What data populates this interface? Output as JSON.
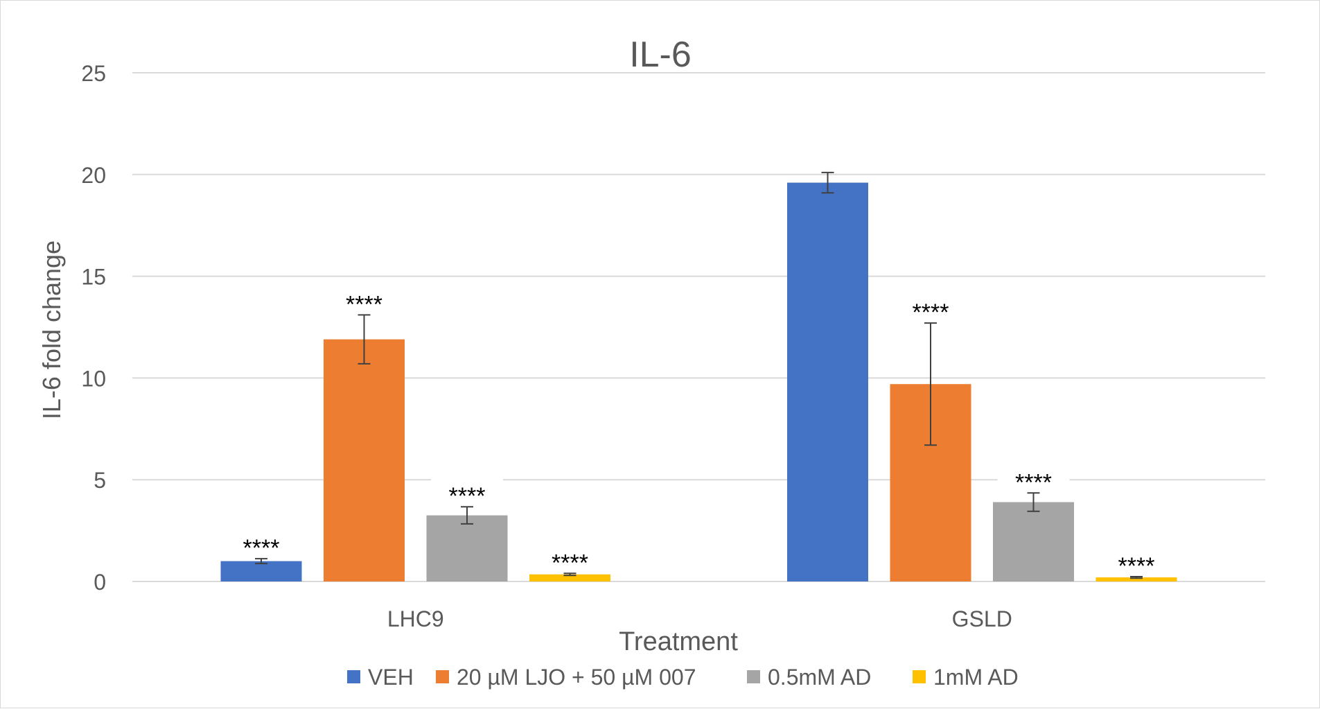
{
  "chart_data": {
    "type": "bar",
    "title": "IL-6",
    "xlabel": "Treatment",
    "ylabel": "IL-6 fold change",
    "ylim": [
      0,
      25
    ],
    "yticks": [
      0,
      5,
      10,
      15,
      20,
      25
    ],
    "grid": true,
    "legend_position": "bottom",
    "categories": [
      "LHC9",
      "GSLD"
    ],
    "series": [
      {
        "name": "VEH",
        "color": "#4472C4",
        "values": [
          1.0,
          19.6
        ],
        "errors": [
          0.12,
          0.5
        ],
        "significance": [
          "****",
          ""
        ]
      },
      {
        "name": "20 µM LJO + 50 µM 007",
        "color": "#ED7D31",
        "values": [
          11.9,
          9.7
        ],
        "errors": [
          1.2,
          3.0
        ],
        "significance": [
          "****",
          "****"
        ]
      },
      {
        "name": "0.5mM AD",
        "color": "#A5A5A5",
        "values": [
          3.25,
          3.9
        ],
        "errors": [
          0.42,
          0.45
        ],
        "significance": [
          "****",
          "****"
        ]
      },
      {
        "name": "1mM AD",
        "color": "#FFC000",
        "values": [
          0.35,
          0.2
        ],
        "errors": [
          0.05,
          0.04
        ],
        "significance": [
          "****",
          "****"
        ]
      }
    ]
  }
}
